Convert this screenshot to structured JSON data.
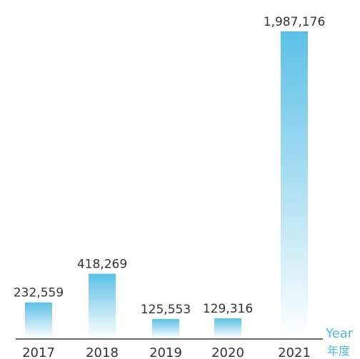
{
  "colors": {
    "bar_top": "#5bc0e6",
    "bar_bottom": "#ffffff",
    "axis": "#666666",
    "accent": "#4cb8e4",
    "text": "#333333"
  },
  "chart_data": {
    "type": "bar",
    "categories": [
      "2017",
      "2018",
      "2019",
      "2020",
      "2021"
    ],
    "values": [
      232559,
      418269,
      125553,
      129316,
      1987176
    ],
    "value_labels": [
      "232,559",
      "418,269",
      "125,553",
      "129,316",
      "1,987,176"
    ],
    "title": "",
    "xlabel_en": "Year",
    "xlabel_zh": "年度",
    "ylabel": "",
    "ylim": [
      0,
      2100000
    ],
    "grid": false,
    "legend": "none"
  }
}
